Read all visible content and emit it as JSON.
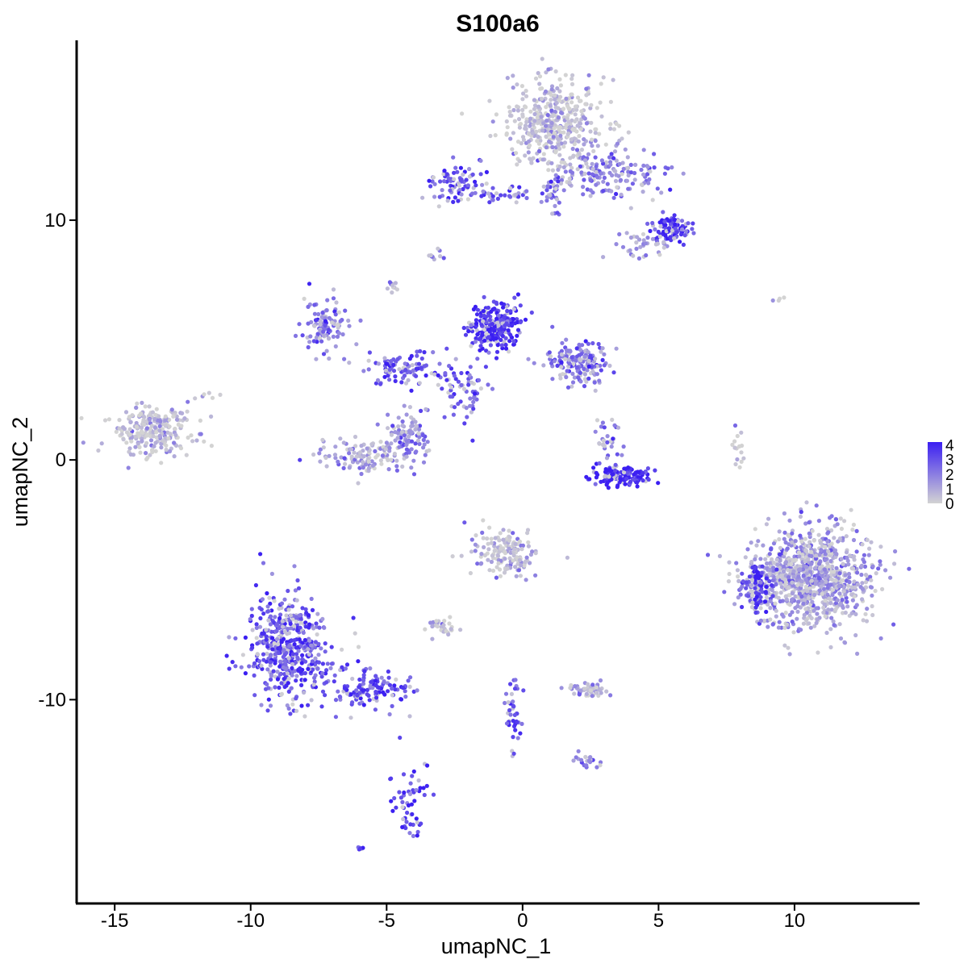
{
  "chart_data": {
    "type": "scatter",
    "title": "S100a6",
    "xlabel": "umapNC_1",
    "ylabel": "umapNC_2",
    "xlim": [
      -16.4,
      14.6
    ],
    "ylim": [
      -18.5,
      17.5
    ],
    "x_ticks": [
      -15,
      -10,
      -5,
      0,
      5,
      10
    ],
    "x_tick_labels": [
      "-15",
      "-10",
      "-5",
      "0",
      "5",
      "10"
    ],
    "y_ticks": [
      -10,
      0,
      10
    ],
    "y_tick_labels": [
      "-10",
      "0",
      "10"
    ],
    "color_scale": {
      "low": "#d3d3d3",
      "high": "#3b1ff2",
      "min": 0,
      "max": 4.2,
      "ticks": [
        0,
        1,
        2,
        3,
        4
      ],
      "tick_labels": [
        "0",
        "1",
        "2",
        "3",
        "4"
      ]
    },
    "legend_position": "right",
    "grid": false,
    "clusters": [
      {
        "cx": 1.2,
        "cy": 14.0,
        "sx": 1.0,
        "sy": 1.1,
        "n": 420,
        "expr": 0.5
      },
      {
        "cx": 3.2,
        "cy": 11.8,
        "sx": 1.3,
        "sy": 0.6,
        "n": 160,
        "expr": 1.9
      },
      {
        "cx": 5.5,
        "cy": 9.7,
        "sx": 0.45,
        "sy": 0.35,
        "n": 90,
        "expr": 3.6
      },
      {
        "cx": 4.6,
        "cy": 9.0,
        "sx": 0.6,
        "sy": 0.3,
        "n": 40,
        "expr": 1.2
      },
      {
        "cx": -2.5,
        "cy": 11.6,
        "sx": 0.6,
        "sy": 0.45,
        "n": 80,
        "expr": 2.9
      },
      {
        "cx": -0.7,
        "cy": 11.1,
        "sx": 0.9,
        "sy": 0.2,
        "n": 40,
        "expr": 2.8
      },
      {
        "cx": 1.1,
        "cy": 11.2,
        "sx": 0.3,
        "sy": 0.5,
        "n": 30,
        "expr": 2.5
      },
      {
        "cx": -1.0,
        "cy": 5.6,
        "sx": 0.55,
        "sy": 0.55,
        "n": 260,
        "expr": 3.7
      },
      {
        "cx": 2.0,
        "cy": 4.1,
        "sx": 0.7,
        "sy": 0.55,
        "n": 170,
        "expr": 2.3
      },
      {
        "cx": -7.3,
        "cy": 5.5,
        "sx": 0.55,
        "sy": 0.6,
        "n": 110,
        "expr": 2.1
      },
      {
        "cx": -4.4,
        "cy": 3.8,
        "sx": 0.9,
        "sy": 0.4,
        "n": 90,
        "expr": 3.0
      },
      {
        "cx": -2.3,
        "cy": 3.0,
        "sx": 0.6,
        "sy": 0.9,
        "n": 70,
        "expr": 2.9
      },
      {
        "cx": -13.6,
        "cy": 1.2,
        "sx": 0.9,
        "sy": 0.6,
        "n": 240,
        "expr": 0.35
      },
      {
        "cx": -5.8,
        "cy": 0.1,
        "sx": 0.8,
        "sy": 0.4,
        "n": 110,
        "expr": 1.1
      },
      {
        "cx": -4.2,
        "cy": 0.9,
        "sx": 0.5,
        "sy": 0.7,
        "n": 110,
        "expr": 1.8
      },
      {
        "cx": 3.6,
        "cy": -0.7,
        "sx": 0.6,
        "sy": 0.25,
        "n": 130,
        "expr": 4.0
      },
      {
        "cx": 3.1,
        "cy": 0.8,
        "sx": 0.3,
        "sy": 0.5,
        "n": 30,
        "expr": 2.2
      },
      {
        "cx": 7.9,
        "cy": 0.4,
        "sx": 0.15,
        "sy": 0.5,
        "n": 15,
        "expr": 0.2
      },
      {
        "cx": 10.6,
        "cy": -4.9,
        "sx": 1.3,
        "sy": 1.2,
        "n": 950,
        "expr": 1.3
      },
      {
        "cx": 8.6,
        "cy": -5.3,
        "sx": 0.35,
        "sy": 0.55,
        "n": 80,
        "expr": 3.6
      },
      {
        "cx": -0.6,
        "cy": -3.8,
        "sx": 0.7,
        "sy": 0.6,
        "n": 150,
        "expr": 0.9
      },
      {
        "cx": -8.6,
        "cy": -7.8,
        "sx": 0.9,
        "sy": 1.3,
        "n": 500,
        "expr": 3.0
      },
      {
        "cx": -5.6,
        "cy": -9.5,
        "sx": 0.9,
        "sy": 0.45,
        "n": 130,
        "expr": 3.1
      },
      {
        "cx": -4.1,
        "cy": -14.2,
        "sx": 0.4,
        "sy": 0.9,
        "n": 55,
        "expr": 3.5
      },
      {
        "cx": -2.9,
        "cy": -6.9,
        "sx": 0.35,
        "sy": 0.25,
        "n": 30,
        "expr": 0.6
      },
      {
        "cx": 2.5,
        "cy": -9.6,
        "sx": 0.5,
        "sy": 0.2,
        "n": 55,
        "expr": 1.0
      },
      {
        "cx": 2.4,
        "cy": -12.6,
        "sx": 0.3,
        "sy": 0.2,
        "n": 20,
        "expr": 2.0
      },
      {
        "cx": -0.3,
        "cy": -10.8,
        "sx": 0.2,
        "sy": 1.0,
        "n": 40,
        "expr": 2.8
      },
      {
        "cx": -6.0,
        "cy": -16.2,
        "sx": 0.08,
        "sy": 0.05,
        "n": 6,
        "expr": 4.0
      },
      {
        "cx": -3.1,
        "cy": 8.5,
        "sx": 0.2,
        "sy": 0.2,
        "n": 10,
        "expr": 1.6
      },
      {
        "cx": -4.7,
        "cy": 7.3,
        "sx": 0.15,
        "sy": 0.2,
        "n": 10,
        "expr": 2.0
      },
      {
        "cx": 9.5,
        "cy": 6.7,
        "sx": 0.15,
        "sy": 0.05,
        "n": 4,
        "expr": 0.2
      },
      {
        "cx": -11.5,
        "cy": 2.7,
        "sx": 0.2,
        "sy": 0.1,
        "n": 6,
        "expr": 0.3
      }
    ]
  }
}
